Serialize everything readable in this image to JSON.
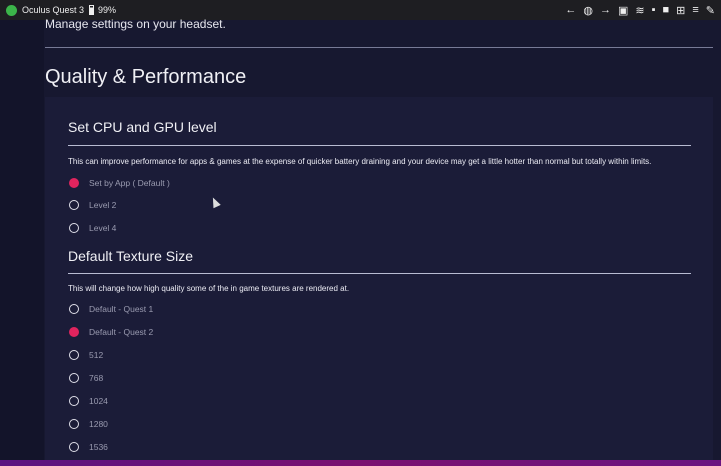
{
  "status_bar": {
    "device": "Oculus Quest 3",
    "battery": "99%",
    "icons": [
      "back-icon",
      "globe-icon",
      "forward-icon",
      "tv-icon",
      "wifi-icon",
      "storage-icon",
      "folder-icon",
      "apps-grid-icon",
      "playlist-icon",
      "wrench-icon"
    ]
  },
  "header": {
    "subtitle": "Manage settings on your headset.",
    "title": "Quality & Performance"
  },
  "sections": [
    {
      "title": "Set CPU and GPU level",
      "description": "This can improve performance for apps & games at the expense of quicker battery draining and your device may get a little hotter than normal but totally within limits.",
      "options": [
        {
          "label": "Set by App ( Default )",
          "selected": true
        },
        {
          "label": "Level 2",
          "selected": false
        },
        {
          "label": "Level 4",
          "selected": false
        }
      ]
    },
    {
      "title": "Default Texture Size",
      "description": "This will change how high quality some of the in game textures are rendered at.",
      "options": [
        {
          "label": "Default - Quest 1",
          "selected": false
        },
        {
          "label": "Default - Quest 2",
          "selected": true
        },
        {
          "label": "512",
          "selected": false
        },
        {
          "label": "768",
          "selected": false
        },
        {
          "label": "1024",
          "selected": false
        },
        {
          "label": "1280",
          "selected": false
        },
        {
          "label": "1536",
          "selected": false
        }
      ]
    }
  ],
  "colors": {
    "accent": "#e0245e",
    "background": "#171830",
    "card": "#1b1c38",
    "status_dot": "#3bb54a"
  }
}
